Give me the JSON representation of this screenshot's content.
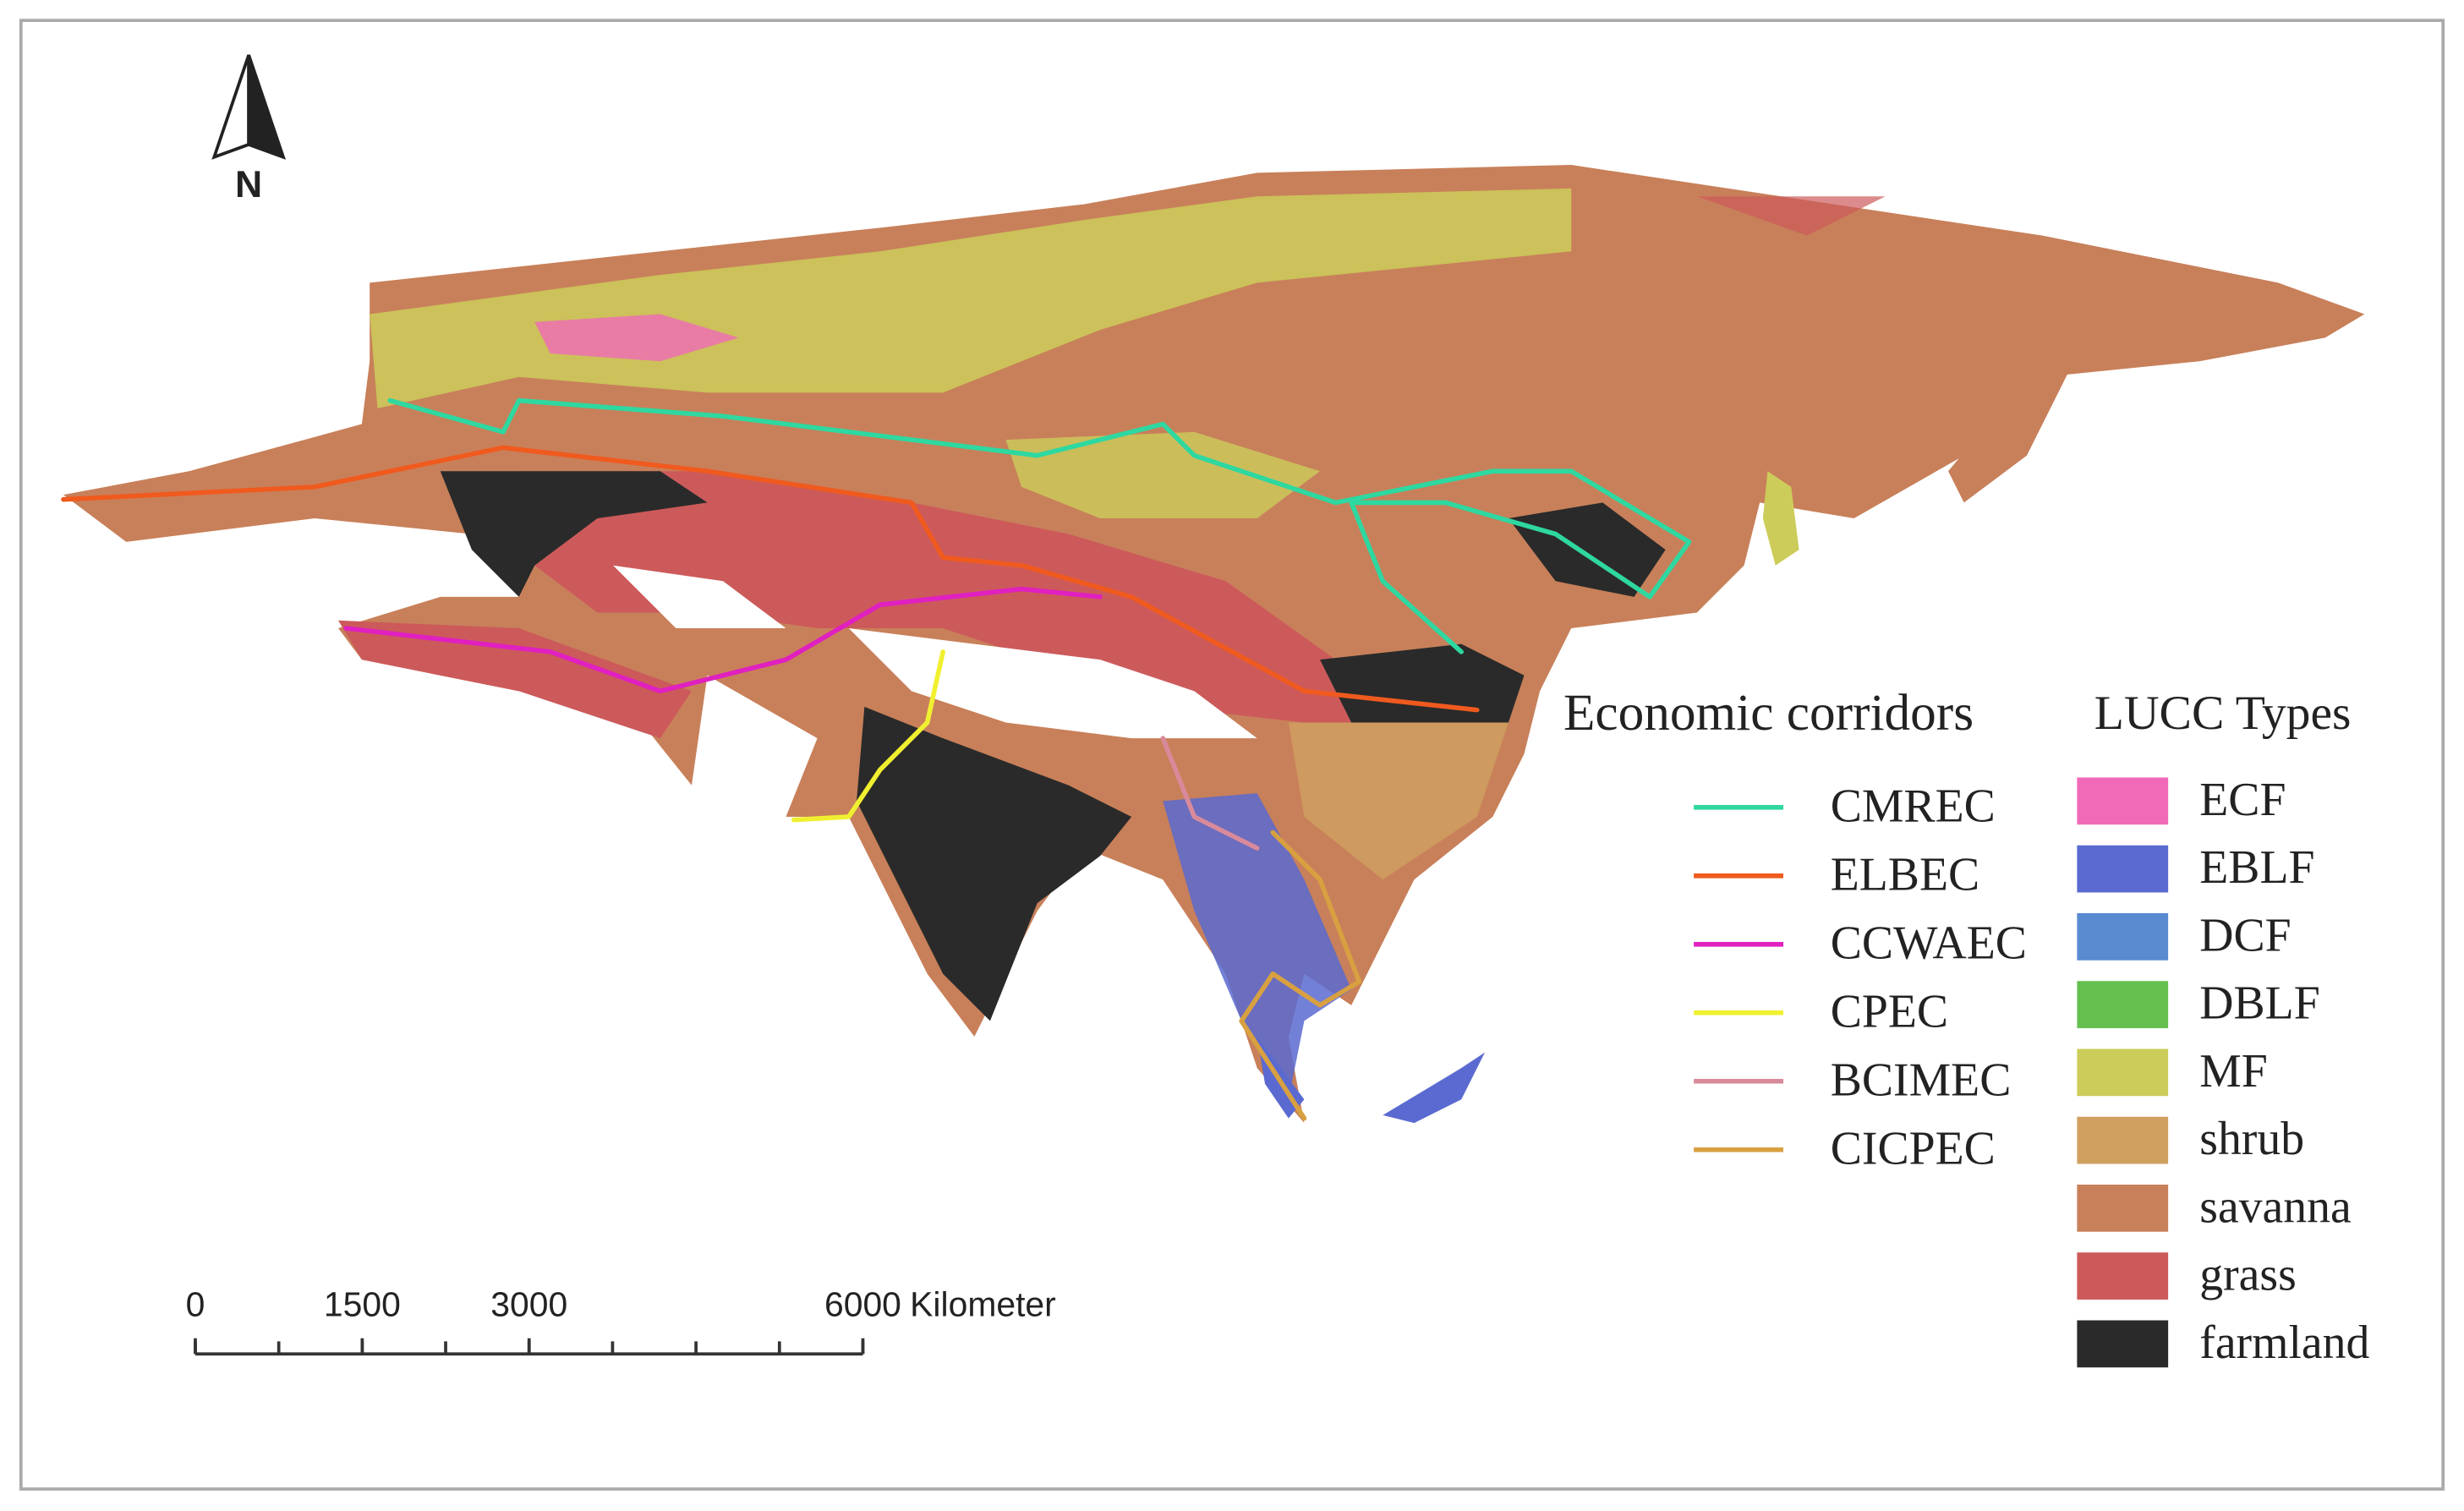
{
  "north_arrow": {
    "label": "N"
  },
  "legend": {
    "corridors": {
      "title": "Economic corridors",
      "items": [
        {
          "name": "CMREC",
          "color": "#2ed8a0"
        },
        {
          "name": "ELBEC",
          "color": "#f05a1e"
        },
        {
          "name": "CCWAEC",
          "color": "#e020c0"
        },
        {
          "name": "CPEC",
          "color": "#f0f030"
        },
        {
          "name": "BCIMEC",
          "color": "#d88a9a"
        },
        {
          "name": "CICPEC",
          "color": "#d8a040"
        }
      ]
    },
    "lucc": {
      "title": "LUCC Types",
      "items": [
        {
          "name": "ECF",
          "color": "#f06ab8"
        },
        {
          "name": "EBLF",
          "color": "#5a6ad0"
        },
        {
          "name": "DCF",
          "color": "#5a8ad0"
        },
        {
          "name": "DBLF",
          "color": "#66c050"
        },
        {
          "name": "MF",
          "color": "#cccc5a"
        },
        {
          "name": "shrub",
          "color": "#d0a060"
        },
        {
          "name": "savanna",
          "color": "#c8805a"
        },
        {
          "name": "grass",
          "color": "#cc5a5a"
        },
        {
          "name": "farmland",
          "color": "#2a2a2a"
        }
      ]
    }
  },
  "scale_bar": {
    "ticks": [
      0,
      1500,
      3000,
      6000
    ],
    "unit": "Kilometer"
  }
}
